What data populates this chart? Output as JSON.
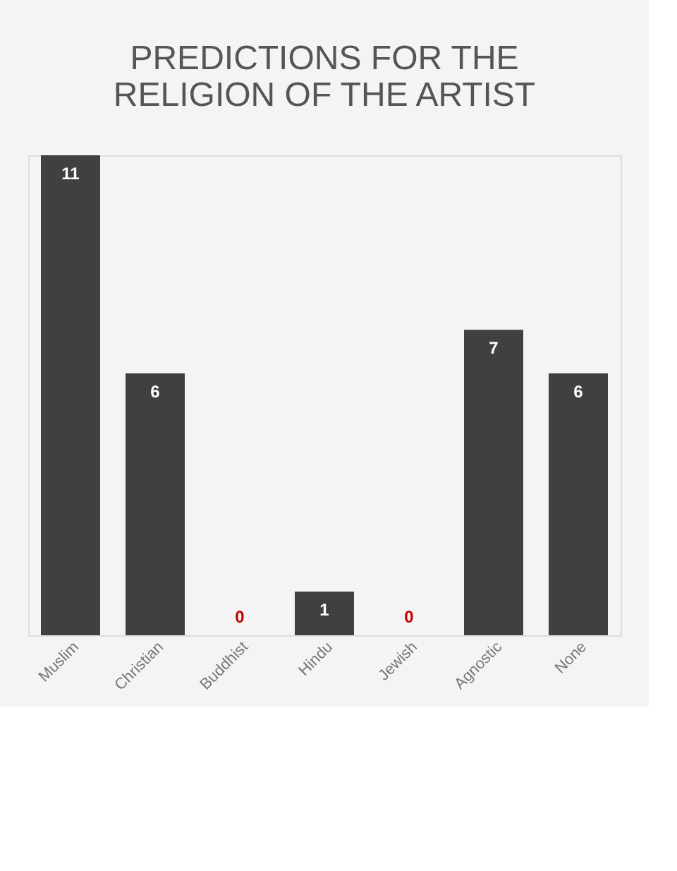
{
  "chart_data": {
    "type": "bar",
    "title": "PREDICTIONS FOR THE RELIGION OF THE ARTIST",
    "categories": [
      "Muslim",
      "Christian",
      "Buddhist",
      "Hindu",
      "Jewish",
      "Agnostic",
      "None"
    ],
    "values": [
      11,
      6,
      0,
      1,
      0,
      7,
      6
    ],
    "color": "#404040",
    "data_labels": true,
    "grid": false
  }
}
